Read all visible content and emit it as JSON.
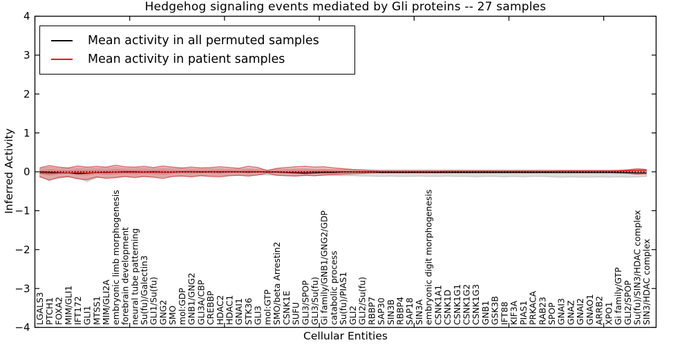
{
  "figure": {
    "title": "Hedgehog signaling events mediated by Gli proteins -- 27 samples",
    "xlabel": "Cellular Entities",
    "ylabel": "Inferred Activity",
    "legend": [
      {
        "label": "Mean activity in all permuted samples",
        "color": "#000000"
      },
      {
        "label": "Mean activity in patient samples",
        "color": "#ff0000"
      }
    ]
  },
  "colors": {
    "permuted_line": "#000000",
    "patient_line": "#e01f1f",
    "patient_band_fill": "rgba(225,55,55,0.30)",
    "patient_band_edge": "rgba(205,45,45,0.65)",
    "permuted_band_fill": "rgba(150,150,150,0.32)",
    "permuted_band_edge": "rgba(130,130,130,0.40)",
    "frame": "#000000"
  },
  "chart_data": {
    "type": "line",
    "title": "Hedgehog signaling events mediated by Gli proteins -- 27 samples",
    "xlabel": "Cellular Entities",
    "ylabel": "Inferred Activity",
    "ylim": [
      -4,
      4
    ],
    "yticks": [
      -4,
      -3,
      -2,
      -1,
      0,
      1,
      2,
      3,
      4
    ],
    "grid": false,
    "legend_position": "upper left",
    "categories": [
      "LGALS3",
      "PTCH1",
      "FOXA2",
      "MIM/GLI1",
      "IFT172",
      "GLI1",
      "MTSS1",
      "MIM/GLI2A",
      "embryonic limb morphogenesis",
      "forebrain development",
      "neural tube patterning",
      "Su(fu)/Galectin3",
      "GLI1/Su(fu)",
      "GNG2",
      "SMO",
      "mol:GDP",
      "GNB1/GNG2",
      "GLI3A/CBP",
      "CREBBP",
      "HDAC2",
      "HDAC1",
      "GNAI1",
      "STK36",
      "GLI3",
      "mol:GTP",
      "SMO/beta Arrestin2",
      "CSNK1E",
      "SUFU",
      "GLI3/SPOP",
      "GLI3/Su(fu)",
      "Gi family/GNB1/GNG2/GDP",
      "catabolic process",
      "Su(fu)/PIAS1",
      "GLI2",
      "GLI2/Su(fu)",
      "RBBP7",
      "SAP30",
      "SIN3B",
      "RBBP4",
      "SAP18",
      "SIN3A",
      "embryonic digit morphogenesis",
      "CSNK1A1",
      "CSNK1D",
      "CSNK1G1",
      "CSNK1G2",
      "CSNK1G3",
      "GNB1",
      "GSK3B",
      "IFT88",
      "KIF3A",
      "PIAS1",
      "PRKACA",
      "RAB23",
      "SPOP",
      "GNAI3",
      "GNAZ",
      "GNAI2",
      "GNAO1",
      "ARRB2",
      "XPO1",
      "Gi family/GTP",
      "GLI2/SPOP",
      "Su(fu)/SIN3/HDAC complex",
      "SIN3/HDAC complex"
    ],
    "series": [
      {
        "name": "Mean activity in all permuted samples",
        "role": "permuted_mean",
        "color": "#000000",
        "values": [
          0,
          -0.01,
          -0.02,
          -0.03,
          -0.05,
          -0.04,
          -0.02,
          -0.01,
          -0.01,
          0,
          0,
          -0.01,
          0,
          -0.01,
          -0.01,
          0,
          0,
          -0.01,
          0,
          -0.01,
          0,
          0,
          -0.01,
          0,
          -0.01,
          -0.01,
          -0.02,
          -0.03,
          -0.04,
          -0.03,
          -0.02,
          -0.02,
          -0.01,
          -0.01,
          -0.01,
          -0.01,
          -0.02,
          -0.02,
          -0.02,
          -0.02,
          -0.02,
          -0.02,
          -0.02,
          -0.02,
          -0.02,
          -0.02,
          -0.02,
          -0.02,
          -0.02,
          -0.02,
          -0.02,
          -0.02,
          -0.02,
          -0.02,
          -0.02,
          -0.02,
          -0.02,
          -0.02,
          -0.02,
          -0.02,
          -0.02,
          -0.02,
          -0.02,
          -0.03,
          -0.03
        ]
      },
      {
        "name": "Mean activity in patient samples",
        "role": "patient_mean",
        "color": "#ff0000",
        "values": [
          -0.03,
          -0.04,
          -0.03,
          -0.03,
          -0.02,
          -0.03,
          -0.02,
          -0.02,
          -0.01,
          -0.01,
          -0.01,
          -0.01,
          -0.01,
          -0.01,
          -0.01,
          0,
          0,
          0,
          0,
          0,
          0,
          0,
          0,
          0,
          0,
          0,
          -0.01,
          -0.01,
          -0.01,
          0,
          0,
          0,
          0,
          0,
          0,
          0,
          0,
          0,
          0,
          0,
          0,
          0,
          0,
          0.01,
          0.01,
          0.01,
          0.01,
          0.01,
          0.01,
          0.01,
          0.01,
          0.01,
          0.01,
          0.01,
          0.01,
          0.02,
          0.02,
          0.02,
          0.02,
          0.02,
          0.02,
          0.02,
          0.03,
          0.04,
          0.04
        ]
      },
      {
        "name": "Permuted band upper",
        "role": "permuted_upper",
        "values": [
          0.08,
          0.12,
          0.09,
          0.08,
          0.1,
          0.09,
          0.1,
          0.09,
          0.12,
          0.09,
          0.09,
          0.1,
          0.08,
          0.1,
          0.09,
          0.08,
          0.08,
          0.07,
          0.08,
          0.08,
          0.07,
          0.07,
          0.08,
          0.07,
          0.05,
          0.07,
          0.07,
          0.08,
          0.08,
          0.07,
          0.07,
          0.06,
          0.06,
          0.05,
          0.05,
          0.05,
          0.05,
          0.05,
          0.05,
          0.05,
          0.05,
          0.05,
          0.05,
          0.05,
          0.05,
          0.05,
          0.05,
          0.05,
          0.05,
          0.05,
          0.05,
          0.05,
          0.05,
          0.05,
          0.05,
          0.05,
          0.05,
          0.05,
          0.05,
          0.05,
          0.05,
          0.05,
          0.05,
          0.05,
          0.05
        ]
      },
      {
        "name": "Permuted band lower",
        "role": "permuted_lower",
        "values": [
          -0.14,
          -0.2,
          -0.17,
          -0.13,
          -0.16,
          -0.25,
          -0.15,
          -0.14,
          -0.13,
          -0.11,
          -0.12,
          -0.11,
          -0.12,
          -0.13,
          -0.11,
          -0.1,
          -0.11,
          -0.09,
          -0.1,
          -0.1,
          -0.09,
          -0.09,
          -0.09,
          -0.08,
          -0.08,
          -0.09,
          -0.09,
          -0.1,
          -0.1,
          -0.1,
          -0.09,
          -0.09,
          -0.1,
          -0.1,
          -0.11,
          -0.11,
          -0.12,
          -0.11,
          -0.12,
          -0.12,
          -0.11,
          -0.12,
          -0.12,
          -0.11,
          -0.12,
          -0.12,
          -0.13,
          -0.12,
          -0.12,
          -0.13,
          -0.12,
          -0.13,
          -0.12,
          -0.12,
          -0.13,
          -0.14,
          -0.13,
          -0.14,
          -0.14,
          -0.13,
          -0.14,
          -0.13,
          -0.14,
          -0.13,
          -0.12
        ]
      },
      {
        "name": "Patient band upper",
        "role": "patient_upper",
        "values": [
          0.1,
          0.16,
          0.12,
          0.1,
          0.15,
          0.12,
          0.14,
          0.12,
          0.17,
          0.13,
          0.12,
          0.14,
          0.11,
          0.15,
          0.12,
          0.1,
          0.12,
          0.1,
          0.11,
          0.13,
          0.11,
          0.09,
          0.14,
          0.11,
          0.03,
          0.09,
          0.11,
          0.13,
          0.14,
          0.12,
          0.13,
          0.1,
          0.08,
          0.06,
          0.05,
          0.03,
          0.02,
          0.02,
          0.02,
          0.02,
          0.02,
          0.02,
          0.02,
          0.02,
          0.02,
          0.02,
          0.02,
          0.02,
          0.02,
          0.02,
          0.02,
          0.02,
          0.02,
          0.02,
          0.02,
          0.02,
          0.02,
          0.02,
          0.02,
          0.02,
          0.02,
          0.03,
          0.05,
          0.08,
          0.06
        ]
      },
      {
        "name": "Patient band lower",
        "role": "patient_lower",
        "values": [
          -0.12,
          -0.22,
          -0.14,
          -0.12,
          -0.18,
          -0.2,
          -0.13,
          -0.17,
          -0.15,
          -0.12,
          -0.15,
          -0.12,
          -0.14,
          -0.17,
          -0.12,
          -0.11,
          -0.13,
          -0.1,
          -0.12,
          -0.13,
          -0.1,
          -0.09,
          -0.11,
          -0.08,
          -0.03,
          -0.09,
          -0.1,
          -0.11,
          -0.09,
          -0.1,
          -0.08,
          -0.07,
          -0.06,
          -0.05,
          -0.04,
          -0.03,
          -0.02,
          -0.02,
          -0.02,
          -0.02,
          -0.02,
          -0.02,
          -0.02,
          -0.02,
          -0.02,
          -0.02,
          -0.02,
          -0.02,
          -0.02,
          -0.02,
          -0.02,
          -0.02,
          -0.02,
          -0.02,
          -0.02,
          -0.02,
          -0.02,
          -0.02,
          -0.02,
          -0.02,
          -0.02,
          -0.03,
          -0.04,
          -0.06,
          -0.05
        ]
      }
    ]
  }
}
